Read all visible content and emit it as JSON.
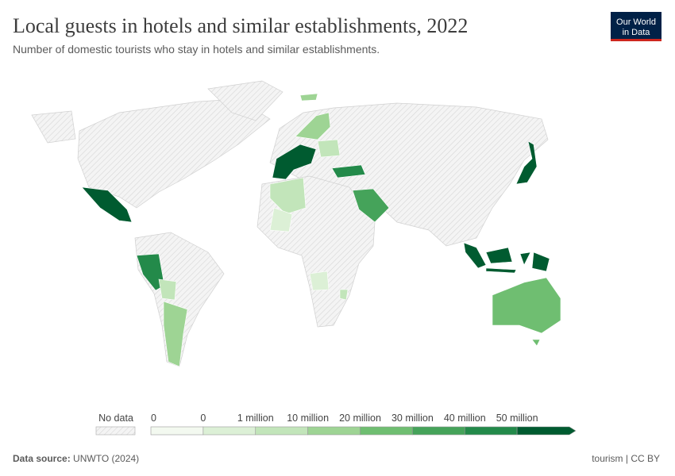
{
  "header": {
    "title": "Local guests in hotels and similar establishments, 2022",
    "subtitle": "Number of domestic tourists who stay in hotels and similar establishments.",
    "logo": [
      "Our World",
      "in Data"
    ]
  },
  "legend": {
    "no_data": "No data",
    "labels": [
      "0",
      "0",
      "1 million",
      "10 million",
      "20 million",
      "30 million",
      "40 million",
      "50 million"
    ],
    "colors": [
      "#f3f9f0",
      "#dcf0d6",
      "#c2e5ba",
      "#9ed494",
      "#6fbe71",
      "#45a35a",
      "#238a4a",
      "#005b30"
    ]
  },
  "footer": {
    "source_label": "Data source:",
    "source": "UNWTO (2024)",
    "license": "tourism | CC BY"
  }
}
